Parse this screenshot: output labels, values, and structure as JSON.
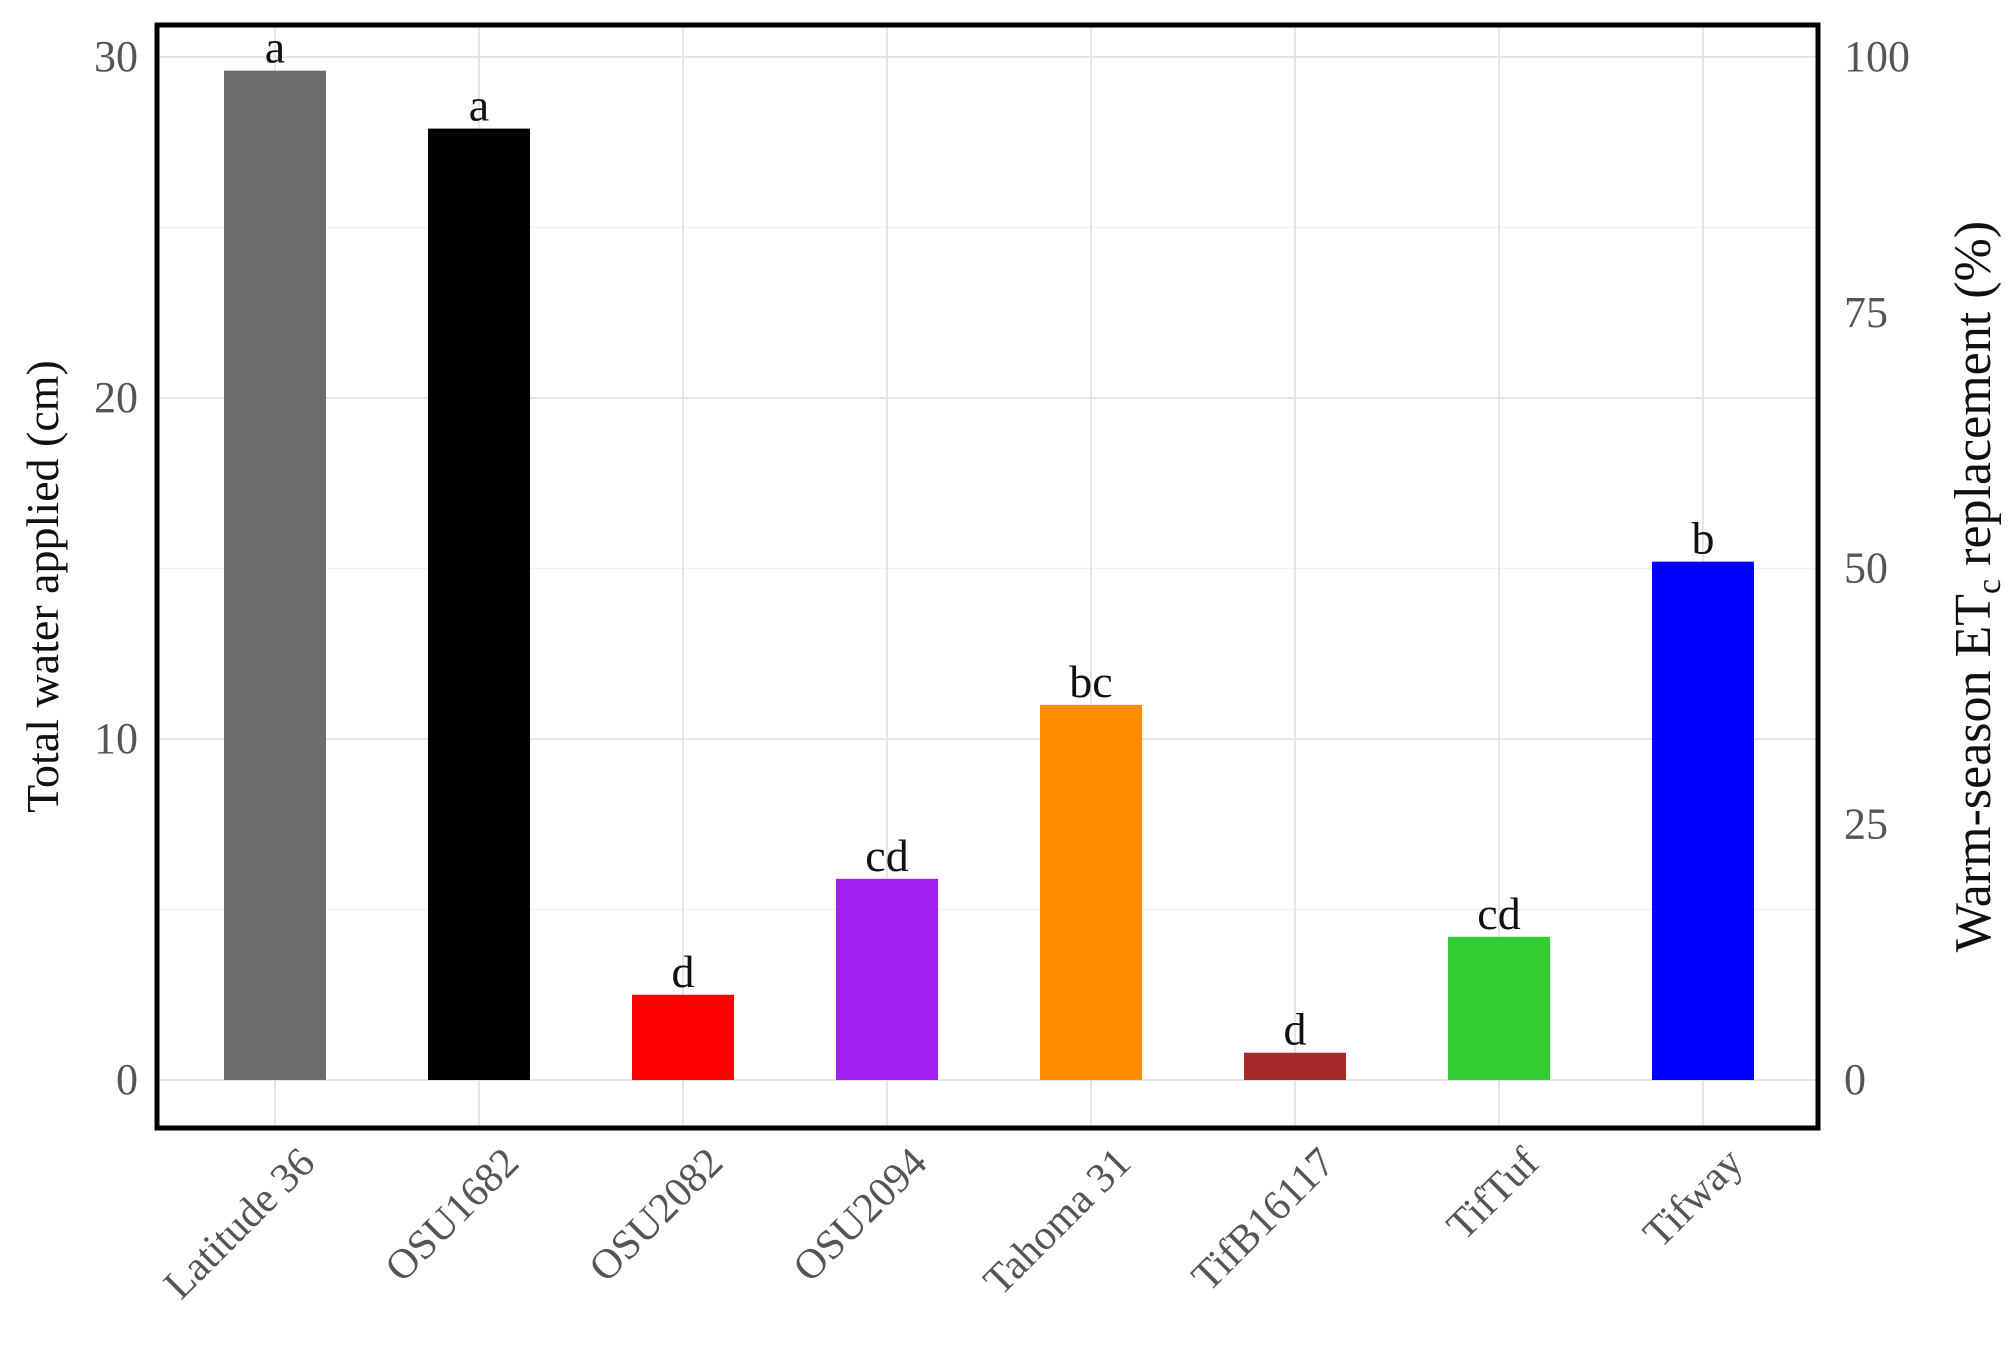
{
  "chart_data": {
    "type": "bar",
    "categories": [
      "Latitude 36",
      "OSU1682",
      "OSU2082",
      "OSU2094",
      "Tahoma 31",
      "TifB16117",
      "TifTuf",
      "Tifway"
    ],
    "values": [
      29.6,
      27.9,
      2.5,
      5.9,
      11.0,
      0.8,
      4.2,
      15.2
    ],
    "letters": [
      "a",
      "a",
      "d",
      "cd",
      "bc",
      "d",
      "cd",
      "b"
    ],
    "colors": [
      "#6b6b6b",
      "#000000",
      "#ff0000",
      "#a020f0",
      "#ff8c00",
      "#a52a2a",
      "#32cd32",
      "#0000ff"
    ],
    "ylabel": "Total water applied (cm)",
    "ylim": [
      0,
      30
    ],
    "yticks": [
      "0",
      "10",
      "20",
      "30"
    ],
    "y2label_prefix": "Warm-season ET",
    "y2label_sub": "c",
    "y2label_suffix": " replacement (%)",
    "y2lim": [
      0,
      100
    ],
    "y2ticks": [
      "0",
      "25",
      "50",
      "75",
      "100"
    ],
    "grid": true,
    "legend": "none"
  }
}
